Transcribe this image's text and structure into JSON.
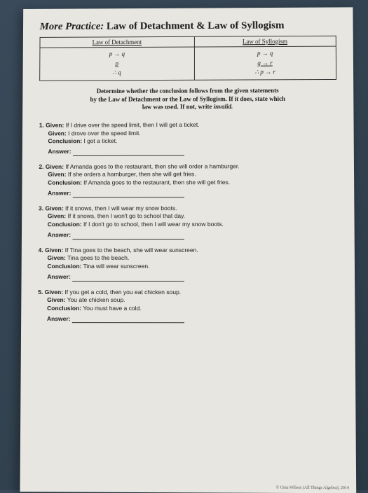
{
  "title_prefix": "More Practice:",
  "title_main": " Law of Detachment & Law of Syllogism",
  "table": {
    "header1": "Law of Detachment",
    "header2": "Law of Syllogism",
    "detach_line1": "p → q",
    "detach_line2": "p",
    "detach_conc": "∴ q",
    "syll_line1": "p → q",
    "syll_line2": "q → r",
    "syll_conc": "∴ p → r"
  },
  "instructions_l1": "Determine whether the conclusion follows from the given statements",
  "instructions_l2": "by the Law of Detachment or the Law of Syllogism.  If it does, state which",
  "instructions_l3": "law was used.  If not, write ",
  "instructions_inv": "invalid.",
  "labels": {
    "given": "Given:",
    "conclusion": "Conclusion:",
    "answer": "Answer:"
  },
  "problems": [
    {
      "num": "1.",
      "g1": "If I drive over the speed limit, then I will get a ticket.",
      "g2": "I drove over the speed limit.",
      "conc": "I got a ticket."
    },
    {
      "num": "2.",
      "g1": "If Amanda goes to the restaurant, then she will order a hamburger.",
      "g2": "If she orders a hamburger, then she will get fries.",
      "conc": "If Amanda goes to the restaurant, then she will get fries."
    },
    {
      "num": "3.",
      "g1": "If it snows, then I will wear my snow boots.",
      "g2": "If it snows, then I won't go to school that day.",
      "conc": "If I don't go to school, then I will wear my snow boots."
    },
    {
      "num": "4.",
      "g1": "If Tina goes to the beach, she will wear sunscreen.",
      "g2": "Tina goes to the beach.",
      "conc": "Tina will wear sunscreen."
    },
    {
      "num": "5.",
      "g1": "If you get a cold, then you eat chicken soup.",
      "g2": "You ate chicken soup.",
      "conc": "You must have a cold."
    }
  ],
  "copyright": "© Gina Wilson (All Things Algebra), 2014"
}
